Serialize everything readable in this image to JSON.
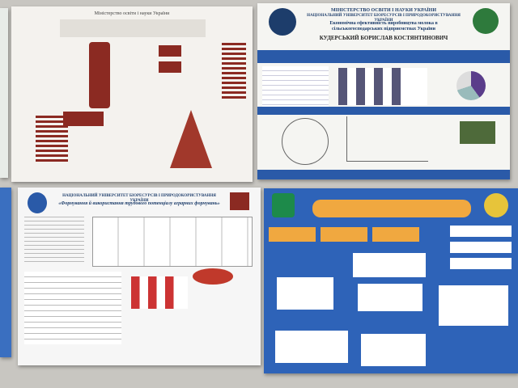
{
  "posters": [
    {
      "header": "Міністерство освіти і науки України"
    },
    {
      "header": "МІНІСТЕРСТВО ОСВІТИ І НАУКИ УКРАЇНИ",
      "institution": "НАЦІОНАЛЬНИЙ УНІВЕРСИТЕТ БІОРЕСУРСІВ І ПРИРОДОКОРИСТУВАННЯ УКРАЇНИ",
      "title": "Економічна ефективність виробництва молока в сільськогосподарських підприємствах України",
      "author": "КУДЕРСЬКИЙ БОРИСЛАВ КОСТЯНТИНОВИЧ"
    },
    {
      "institution": "НАЦІОНАЛЬНИЙ УНІВЕРСИТЕТ БІОРЕСУРСІВ І ПРИРОДОКОРИСТУВАННЯ УКРАЇНИ",
      "title": "«Формування й використання трудового потенціалу аграрних формувань»"
    }
  ]
}
